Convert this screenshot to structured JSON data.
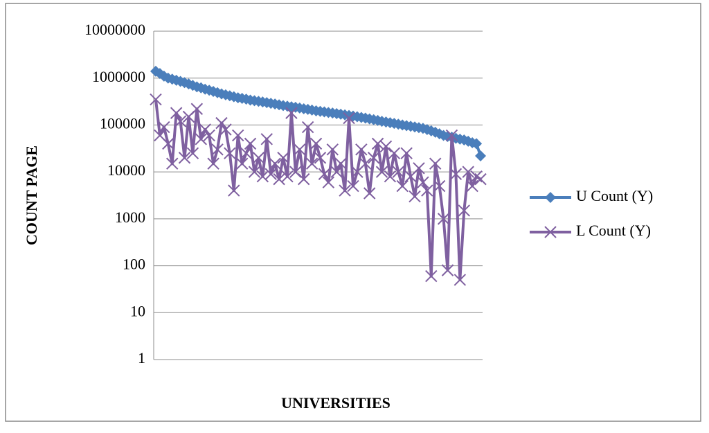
{
  "chart_data": {
    "type": "line",
    "x_label": "UNIVERSITIES",
    "y_label": "COUNT PAGE",
    "categories": [
      null,
      null,
      null,
      null,
      null,
      null,
      null,
      null,
      null,
      null,
      null,
      null,
      null,
      null,
      null,
      null,
      null,
      null,
      null,
      null,
      null,
      null,
      null,
      null,
      null,
      null,
      null,
      null,
      null,
      null,
      null,
      null,
      null,
      null,
      null,
      null,
      null,
      null,
      null,
      null,
      null,
      null,
      null,
      null,
      null,
      null,
      null,
      null,
      null,
      null,
      null,
      null,
      null,
      null,
      null,
      null,
      null,
      null,
      null,
      null,
      null,
      null,
      null,
      null,
      null,
      null,
      null,
      null,
      null,
      null,
      null,
      null,
      null,
      null,
      null,
      null,
      null,
      null,
      null,
      null
    ],
    "series": [
      {
        "name": "U Count (Y)",
        "color": "#4a7ebb",
        "marker": "diamond",
        "values": [
          1400000,
          1250000,
          1100000,
          1000000,
          950000,
          900000,
          850000,
          800000,
          750000,
          700000,
          650000,
          620000,
          580000,
          550000,
          520000,
          490000,
          460000,
          440000,
          420000,
          400000,
          380000,
          370000,
          355000,
          340000,
          330000,
          320000,
          310000,
          300000,
          290000,
          280000,
          270000,
          260000,
          252000,
          245000,
          238000,
          230000,
          222000,
          215000,
          208000,
          200000,
          195000,
          190000,
          185000,
          180000,
          175000,
          170000,
          165000,
          160000,
          155000,
          150000,
          145000,
          140000,
          135000,
          130000,
          125000,
          120000,
          116000,
          112000,
          108000,
          104000,
          100000,
          97000,
          94000,
          91000,
          88000,
          85000,
          80000,
          75000,
          70000,
          65000,
          60000,
          57000,
          55000,
          52000,
          50000,
          48000,
          45000,
          42000,
          40000,
          22000
        ]
      },
      {
        "name": "L Count (Y)",
        "color": "#7f60a0",
        "marker": "x",
        "values": [
          350000,
          60000,
          90000,
          40000,
          15000,
          180000,
          120000,
          20000,
          150000,
          25000,
          220000,
          50000,
          80000,
          60000,
          15000,
          30000,
          110000,
          80000,
          25000,
          4000,
          60000,
          15000,
          25000,
          40000,
          10000,
          20000,
          8000,
          50000,
          9000,
          15000,
          7000,
          20000,
          8000,
          180000,
          10000,
          30000,
          7000,
          90000,
          15000,
          40000,
          20000,
          9000,
          6000,
          30000,
          10000,
          15000,
          4000,
          140000,
          5000,
          10000,
          30000,
          15000,
          3500,
          20000,
          40000,
          10000,
          35000,
          8000,
          25000,
          10000,
          5000,
          25000,
          8000,
          3000,
          12000,
          6000,
          4000,
          60,
          15000,
          5000,
          1000,
          80,
          60000,
          9000,
          50,
          1500,
          10000,
          5000,
          8000,
          7000
        ]
      }
    ],
    "ylim": [
      1,
      10000000
    ],
    "yticks": [
      1,
      10,
      100,
      1000,
      10000,
      100000,
      1000000,
      10000000
    ],
    "yscale": "log",
    "grid": true,
    "legend": "right"
  }
}
